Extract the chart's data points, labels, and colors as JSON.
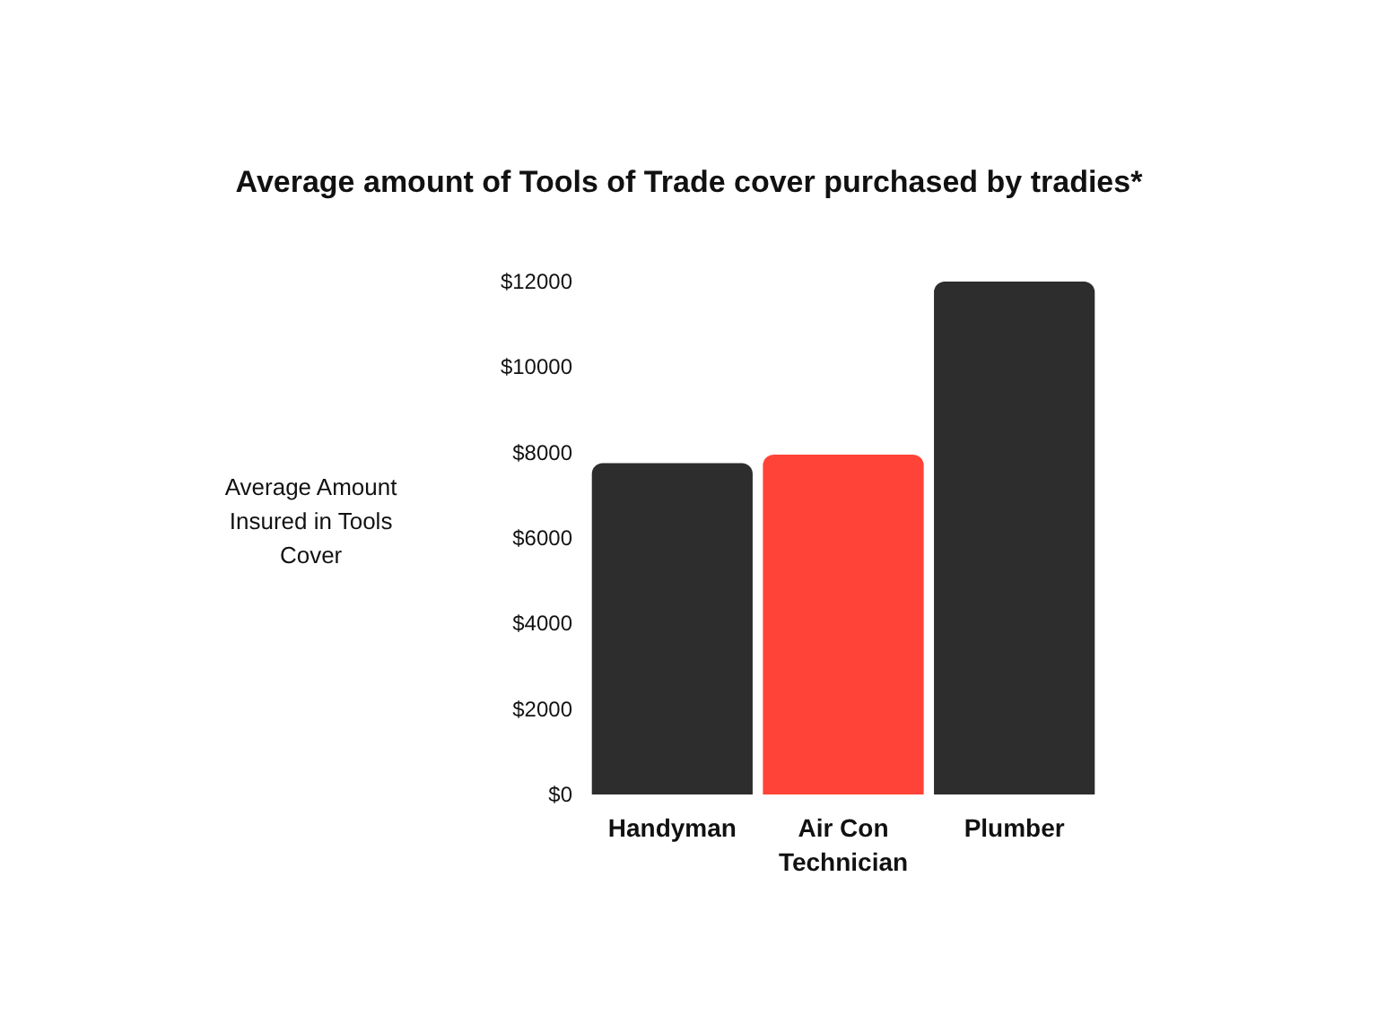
{
  "chart_data": {
    "type": "bar",
    "title": "Average amount of Tools of Trade cover purchased by tradies*",
    "ylabel": "Average Amount\nInsured in Tools\nCover",
    "categories": [
      "Handyman",
      "Air Con\nTechnician",
      "Plumber"
    ],
    "values": [
      7750,
      7950,
      12000
    ],
    "colors": [
      "#2d2d2d",
      "#ff4338",
      "#2d2d2d"
    ],
    "ylim": [
      0,
      12000
    ],
    "yticks": [
      {
        "value": 0,
        "label": "$0"
      },
      {
        "value": 2000,
        "label": "$2000"
      },
      {
        "value": 4000,
        "label": "$4000"
      },
      {
        "value": 6000,
        "label": "$6000"
      },
      {
        "value": 8000,
        "label": "$8000"
      },
      {
        "value": 10000,
        "label": "$10000"
      },
      {
        "value": 12000,
        "label": "$12000"
      }
    ],
    "grid": false
  }
}
